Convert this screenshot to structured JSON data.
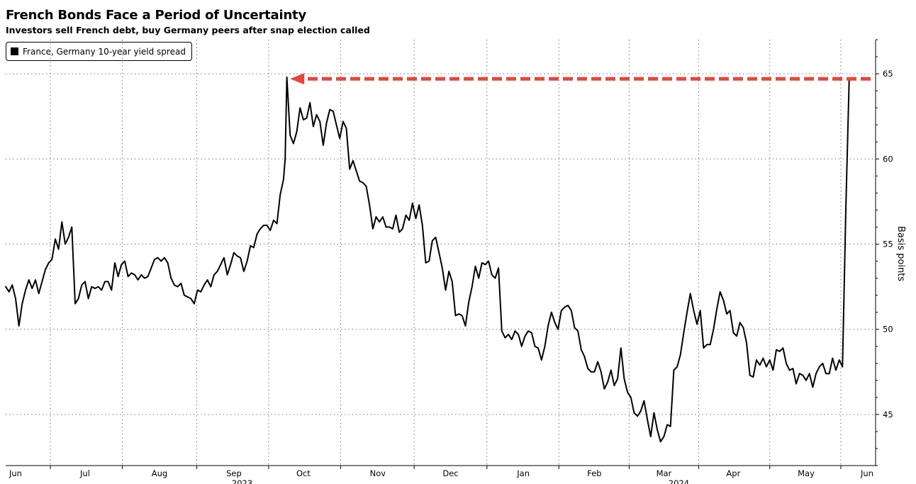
{
  "chart_data": {
    "type": "line",
    "title": "French Bonds Face a Period of Uncertainty",
    "subtitle": "Investors sell French debt, buy Germany peers after snap election called",
    "ylabel": "Basis points",
    "ylim": [
      42,
      67
    ],
    "yticks": [
      45,
      50,
      55,
      60,
      65
    ],
    "xlim": [
      0,
      52.6
    ],
    "legend": {
      "position": "top-left"
    },
    "grid": true,
    "colors": {
      "line": "#000000",
      "annotation_arrow": "#e8453c"
    },
    "x_ticks": [
      {
        "label": "Jun",
        "x": 0.6
      },
      {
        "label": "Jul",
        "x": 4.8
      },
      {
        "label": "Aug",
        "x": 9.3
      },
      {
        "label": "Sep",
        "x": 13.8
      },
      {
        "label": "Oct",
        "x": 18.0
      },
      {
        "label": "Nov",
        "x": 22.5
      },
      {
        "label": "Dec",
        "x": 26.9
      },
      {
        "label": "Jan",
        "x": 31.3
      },
      {
        "label": "Feb",
        "x": 35.6
      },
      {
        "label": "Mar",
        "x": 39.8
      },
      {
        "label": "Apr",
        "x": 44.0
      },
      {
        "label": "May",
        "x": 48.4
      },
      {
        "label": "Jun",
        "x": 52.6
      }
    ],
    "year_labels": [
      {
        "label": "2023",
        "x": 14.3
      },
      {
        "label": "2024",
        "x": 40.7
      }
    ],
    "annotation": {
      "type": "arrow",
      "y": 64.7,
      "x_from": 52.3,
      "x_to": 17.2
    },
    "series": [
      {
        "name": "France, Germany 10-year yield spread",
        "points": [
          [
            0.0,
            52.5
          ],
          [
            0.2,
            52.2
          ],
          [
            0.4,
            52.6
          ],
          [
            0.6,
            51.8
          ],
          [
            0.8,
            50.2
          ],
          [
            1.0,
            51.5
          ],
          [
            1.2,
            52.3
          ],
          [
            1.4,
            52.9
          ],
          [
            1.6,
            52.4
          ],
          [
            1.8,
            52.9
          ],
          [
            2.0,
            52.1
          ],
          [
            2.2,
            52.8
          ],
          [
            2.4,
            53.5
          ],
          [
            2.6,
            53.9
          ],
          [
            2.8,
            54.1
          ],
          [
            3.0,
            55.3
          ],
          [
            3.2,
            54.7
          ],
          [
            3.4,
            56.3
          ],
          [
            3.6,
            55.0
          ],
          [
            3.8,
            55.4
          ],
          [
            4.0,
            56.0
          ],
          [
            4.2,
            51.5
          ],
          [
            4.4,
            51.8
          ],
          [
            4.6,
            52.6
          ],
          [
            4.8,
            52.8
          ],
          [
            5.0,
            51.8
          ],
          [
            5.2,
            52.5
          ],
          [
            5.4,
            52.4
          ],
          [
            5.6,
            52.5
          ],
          [
            5.8,
            52.3
          ],
          [
            6.0,
            52.8
          ],
          [
            6.2,
            52.8
          ],
          [
            6.4,
            52.3
          ],
          [
            6.6,
            53.9
          ],
          [
            6.8,
            53.1
          ],
          [
            7.0,
            53.8
          ],
          [
            7.2,
            54.0
          ],
          [
            7.4,
            53.1
          ],
          [
            7.6,
            53.3
          ],
          [
            7.8,
            53.2
          ],
          [
            8.0,
            52.9
          ],
          [
            8.2,
            53.2
          ],
          [
            8.4,
            53.0
          ],
          [
            8.6,
            53.1
          ],
          [
            8.8,
            53.6
          ],
          [
            9.0,
            54.1
          ],
          [
            9.2,
            54.2
          ],
          [
            9.4,
            54.0
          ],
          [
            9.6,
            54.2
          ],
          [
            9.8,
            53.9
          ],
          [
            10.0,
            53.0
          ],
          [
            10.2,
            52.6
          ],
          [
            10.4,
            52.5
          ],
          [
            10.6,
            52.7
          ],
          [
            10.8,
            52.0
          ],
          [
            11.0,
            51.9
          ],
          [
            11.2,
            51.8
          ],
          [
            11.4,
            51.5
          ],
          [
            11.6,
            52.3
          ],
          [
            11.8,
            52.2
          ],
          [
            12.0,
            52.6
          ],
          [
            12.2,
            52.9
          ],
          [
            12.4,
            52.5
          ],
          [
            12.6,
            53.2
          ],
          [
            12.8,
            53.4
          ],
          [
            13.0,
            53.8
          ],
          [
            13.2,
            54.2
          ],
          [
            13.4,
            53.2
          ],
          [
            13.6,
            53.8
          ],
          [
            13.8,
            54.5
          ],
          [
            14.0,
            54.3
          ],
          [
            14.2,
            54.2
          ],
          [
            14.4,
            53.4
          ],
          [
            14.6,
            54.0
          ],
          [
            14.8,
            54.9
          ],
          [
            15.0,
            54.8
          ],
          [
            15.2,
            55.6
          ],
          [
            15.4,
            55.9
          ],
          [
            15.6,
            56.1
          ],
          [
            15.8,
            56.1
          ],
          [
            16.0,
            55.8
          ],
          [
            16.2,
            56.4
          ],
          [
            16.4,
            56.2
          ],
          [
            16.6,
            57.9
          ],
          [
            16.8,
            58.8
          ],
          [
            16.9,
            60.0
          ],
          [
            17.0,
            64.8
          ],
          [
            17.2,
            61.4
          ],
          [
            17.4,
            60.9
          ],
          [
            17.6,
            61.6
          ],
          [
            17.8,
            63.0
          ],
          [
            18.0,
            62.3
          ],
          [
            18.2,
            62.4
          ],
          [
            18.4,
            63.3
          ],
          [
            18.6,
            61.9
          ],
          [
            18.8,
            62.6
          ],
          [
            19.0,
            62.2
          ],
          [
            19.2,
            60.8
          ],
          [
            19.4,
            62.1
          ],
          [
            19.6,
            62.9
          ],
          [
            19.8,
            62.8
          ],
          [
            20.0,
            62.0
          ],
          [
            20.2,
            61.2
          ],
          [
            20.4,
            62.2
          ],
          [
            20.6,
            61.8
          ],
          [
            20.8,
            59.4
          ],
          [
            21.0,
            59.9
          ],
          [
            21.2,
            59.3
          ],
          [
            21.4,
            58.7
          ],
          [
            21.6,
            58.6
          ],
          [
            21.8,
            58.4
          ],
          [
            22.0,
            57.3
          ],
          [
            22.2,
            55.9
          ],
          [
            22.4,
            56.6
          ],
          [
            22.6,
            56.3
          ],
          [
            22.8,
            56.6
          ],
          [
            23.0,
            56.0
          ],
          [
            23.2,
            56.0
          ],
          [
            23.4,
            55.9
          ],
          [
            23.6,
            56.7
          ],
          [
            23.8,
            55.7
          ],
          [
            24.0,
            55.9
          ],
          [
            24.2,
            56.7
          ],
          [
            24.4,
            56.4
          ],
          [
            24.6,
            57.4
          ],
          [
            24.8,
            56.5
          ],
          [
            25.0,
            57.3
          ],
          [
            25.2,
            56.1
          ],
          [
            25.4,
            53.9
          ],
          [
            25.6,
            54.0
          ],
          [
            25.8,
            55.2
          ],
          [
            26.0,
            55.4
          ],
          [
            26.2,
            54.5
          ],
          [
            26.4,
            53.6
          ],
          [
            26.6,
            52.3
          ],
          [
            26.8,
            53.4
          ],
          [
            27.0,
            52.8
          ],
          [
            27.2,
            50.8
          ],
          [
            27.4,
            50.9
          ],
          [
            27.6,
            50.8
          ],
          [
            27.8,
            50.2
          ],
          [
            28.0,
            51.6
          ],
          [
            28.2,
            52.5
          ],
          [
            28.4,
            53.7
          ],
          [
            28.6,
            53.0
          ],
          [
            28.8,
            53.9
          ],
          [
            29.0,
            53.8
          ],
          [
            29.2,
            54.0
          ],
          [
            29.4,
            53.2
          ],
          [
            29.6,
            53.0
          ],
          [
            29.8,
            53.6
          ],
          [
            30.0,
            49.9
          ],
          [
            30.2,
            49.5
          ],
          [
            30.4,
            49.7
          ],
          [
            30.6,
            49.4
          ],
          [
            30.8,
            49.9
          ],
          [
            31.0,
            49.7
          ],
          [
            31.2,
            49.0
          ],
          [
            31.4,
            49.6
          ],
          [
            31.6,
            49.9
          ],
          [
            31.8,
            49.8
          ],
          [
            32.0,
            49.0
          ],
          [
            32.2,
            48.9
          ],
          [
            32.4,
            48.2
          ],
          [
            32.6,
            49.0
          ],
          [
            32.8,
            50.2
          ],
          [
            33.0,
            51.0
          ],
          [
            33.2,
            50.4
          ],
          [
            33.4,
            50.0
          ],
          [
            33.6,
            51.1
          ],
          [
            33.8,
            51.3
          ],
          [
            34.0,
            51.4
          ],
          [
            34.2,
            51.1
          ],
          [
            34.4,
            50.1
          ],
          [
            34.6,
            49.9
          ],
          [
            34.8,
            48.8
          ],
          [
            35.0,
            48.4
          ],
          [
            35.2,
            47.7
          ],
          [
            35.4,
            47.5
          ],
          [
            35.6,
            47.5
          ],
          [
            35.8,
            48.1
          ],
          [
            36.0,
            47.5
          ],
          [
            36.2,
            46.5
          ],
          [
            36.4,
            46.9
          ],
          [
            36.6,
            47.6
          ],
          [
            36.8,
            46.7
          ],
          [
            37.0,
            47.1
          ],
          [
            37.2,
            48.9
          ],
          [
            37.4,
            47.1
          ],
          [
            37.6,
            46.3
          ],
          [
            37.8,
            46.0
          ],
          [
            38.0,
            45.1
          ],
          [
            38.2,
            44.9
          ],
          [
            38.4,
            45.2
          ],
          [
            38.6,
            45.8
          ],
          [
            38.8,
            44.7
          ],
          [
            39.0,
            43.7
          ],
          [
            39.2,
            45.1
          ],
          [
            39.4,
            44.1
          ],
          [
            39.6,
            43.4
          ],
          [
            39.8,
            43.7
          ],
          [
            40.0,
            44.4
          ],
          [
            40.2,
            44.3
          ],
          [
            40.4,
            47.6
          ],
          [
            40.6,
            47.8
          ],
          [
            40.8,
            48.5
          ],
          [
            41.0,
            49.8
          ],
          [
            41.2,
            51.0
          ],
          [
            41.4,
            52.1
          ],
          [
            41.6,
            51.1
          ],
          [
            41.8,
            50.3
          ],
          [
            42.0,
            51.1
          ],
          [
            42.2,
            48.9
          ],
          [
            42.4,
            49.1
          ],
          [
            42.6,
            49.1
          ],
          [
            42.8,
            50.0
          ],
          [
            43.0,
            51.2
          ],
          [
            43.2,
            52.2
          ],
          [
            43.4,
            51.7
          ],
          [
            43.6,
            50.9
          ],
          [
            43.8,
            51.1
          ],
          [
            44.0,
            49.8
          ],
          [
            44.2,
            49.6
          ],
          [
            44.4,
            50.4
          ],
          [
            44.6,
            50.1
          ],
          [
            44.8,
            49.2
          ],
          [
            45.0,
            47.3
          ],
          [
            45.2,
            47.2
          ],
          [
            45.4,
            48.2
          ],
          [
            45.6,
            47.9
          ],
          [
            45.8,
            48.3
          ],
          [
            46.0,
            47.8
          ],
          [
            46.2,
            48.2
          ],
          [
            46.4,
            47.6
          ],
          [
            46.6,
            48.8
          ],
          [
            46.8,
            48.7
          ],
          [
            47.0,
            48.9
          ],
          [
            47.2,
            48.0
          ],
          [
            47.4,
            47.6
          ],
          [
            47.6,
            47.7
          ],
          [
            47.8,
            46.8
          ],
          [
            48.0,
            47.4
          ],
          [
            48.2,
            47.3
          ],
          [
            48.4,
            47.0
          ],
          [
            48.6,
            47.4
          ],
          [
            48.8,
            46.6
          ],
          [
            49.0,
            47.4
          ],
          [
            49.2,
            47.8
          ],
          [
            49.4,
            48.0
          ],
          [
            49.6,
            47.4
          ],
          [
            49.8,
            47.4
          ],
          [
            50.0,
            48.3
          ],
          [
            50.2,
            47.6
          ],
          [
            50.4,
            48.2
          ],
          [
            50.6,
            47.8
          ],
          [
            50.8,
            57.0
          ],
          [
            51.0,
            64.6
          ]
        ]
      }
    ]
  }
}
